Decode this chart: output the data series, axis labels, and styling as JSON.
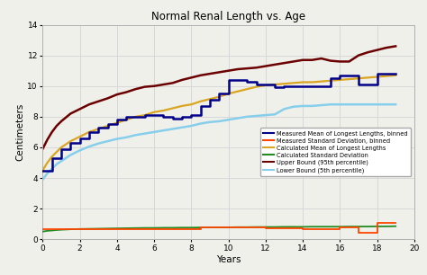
{
  "title": "Normal Renal Length vs. Age",
  "xlabel": "Years",
  "ylabel": "Centimeters",
  "xlim": [
    0,
    20
  ],
  "ylim": [
    0,
    14
  ],
  "xticks": [
    0,
    2,
    4,
    6,
    8,
    10,
    12,
    14,
    16,
    18,
    20
  ],
  "yticks": [
    0,
    2,
    4,
    6,
    8,
    10,
    12,
    14
  ],
  "measured_mean_x": [
    0,
    0.5,
    1,
    1.5,
    2,
    2.5,
    3,
    3.5,
    4,
    4.5,
    5,
    5.5,
    6,
    6.5,
    7,
    7.5,
    8,
    8.5,
    9,
    9.5,
    10,
    10.5,
    11,
    11.5,
    12,
    12.5,
    13,
    13.5,
    14,
    14.5,
    15,
    15.5,
    16,
    16.5,
    17,
    17.5,
    18,
    18.5,
    19
  ],
  "measured_mean_y": [
    4.5,
    5.3,
    5.9,
    6.3,
    6.6,
    7.0,
    7.3,
    7.5,
    7.8,
    8.0,
    8.0,
    8.1,
    8.1,
    8.0,
    7.9,
    8.0,
    8.1,
    8.7,
    9.1,
    9.5,
    10.4,
    10.4,
    10.3,
    10.1,
    10.1,
    9.9,
    10.0,
    10.0,
    10.0,
    10.0,
    10.0,
    10.5,
    10.7,
    10.7,
    10.1,
    10.1,
    10.8,
    10.8,
    10.8
  ],
  "meas_std_x": [
    0,
    0.5,
    1,
    1.5,
    2,
    2.5,
    3,
    3.5,
    4,
    4.5,
    5,
    5.5,
    6,
    6.5,
    7,
    7.5,
    8,
    8.5,
    9,
    9.5,
    10,
    10.5,
    11,
    11.5,
    12,
    12.5,
    13,
    13.5,
    14,
    14.5,
    15,
    15.5,
    16,
    16.5,
    17,
    17.5,
    18,
    18.5,
    19
  ],
  "meas_std_y": [
    0.65,
    0.65,
    0.65,
    0.65,
    0.65,
    0.65,
    0.65,
    0.65,
    0.65,
    0.65,
    0.65,
    0.65,
    0.65,
    0.65,
    0.65,
    0.65,
    0.65,
    0.75,
    0.8,
    0.8,
    0.75,
    0.75,
    0.75,
    0.75,
    0.7,
    0.7,
    0.7,
    0.7,
    0.65,
    0.65,
    0.65,
    0.65,
    0.75,
    0.75,
    0.4,
    0.4,
    1.05,
    1.05,
    1.05
  ],
  "calc_mean_x": [
    0,
    0.25,
    0.5,
    0.75,
    1,
    1.5,
    2,
    2.5,
    3,
    3.5,
    4,
    4.5,
    5,
    5.5,
    6,
    6.5,
    7,
    7.5,
    8,
    8.5,
    9,
    9.5,
    10,
    10.5,
    11,
    11.5,
    12,
    12.5,
    13,
    13.5,
    14,
    14.5,
    15,
    15.5,
    16,
    16.5,
    17,
    17.5,
    18,
    18.5,
    19
  ],
  "calc_mean_y": [
    4.5,
    5.0,
    5.4,
    5.7,
    6.0,
    6.4,
    6.7,
    7.0,
    7.2,
    7.4,
    7.6,
    7.8,
    8.0,
    8.1,
    8.3,
    8.4,
    8.55,
    8.7,
    8.8,
    9.0,
    9.15,
    9.3,
    9.5,
    9.65,
    9.8,
    9.95,
    10.05,
    10.1,
    10.15,
    10.2,
    10.25,
    10.25,
    10.3,
    10.35,
    10.4,
    10.45,
    10.5,
    10.55,
    10.6,
    10.65,
    10.7
  ],
  "calc_std_x": [
    0,
    0.25,
    0.5,
    0.75,
    1,
    1.5,
    2,
    2.5,
    3,
    3.5,
    4,
    4.5,
    5,
    5.5,
    6,
    6.5,
    7,
    7.5,
    8,
    8.5,
    9,
    9.5,
    10,
    10.5,
    11,
    11.5,
    12,
    12.5,
    13,
    13.5,
    14,
    14.5,
    15,
    15.5,
    16,
    16.5,
    17,
    17.5,
    18,
    18.5,
    19
  ],
  "calc_std_y": [
    0.5,
    0.55,
    0.57,
    0.6,
    0.62,
    0.65,
    0.67,
    0.68,
    0.69,
    0.7,
    0.71,
    0.72,
    0.73,
    0.74,
    0.74,
    0.75,
    0.75,
    0.76,
    0.76,
    0.77,
    0.77,
    0.78,
    0.78,
    0.79,
    0.79,
    0.8,
    0.8,
    0.8,
    0.81,
    0.81,
    0.81,
    0.82,
    0.82,
    0.82,
    0.82,
    0.83,
    0.83,
    0.83,
    0.84,
    0.84,
    0.85
  ],
  "upper_x": [
    0,
    0.25,
    0.5,
    0.75,
    1,
    1.5,
    2,
    2.5,
    3,
    3.5,
    4,
    4.5,
    5,
    5.5,
    6,
    6.5,
    7,
    7.5,
    8,
    8.5,
    9,
    9.5,
    10,
    10.5,
    11,
    11.5,
    12,
    12.5,
    13,
    13.5,
    14,
    14.5,
    15,
    15.5,
    16,
    16.5,
    17,
    17.5,
    18,
    18.5,
    19
  ],
  "upper_y": [
    5.9,
    6.5,
    7.0,
    7.4,
    7.7,
    8.2,
    8.5,
    8.8,
    9.0,
    9.2,
    9.45,
    9.6,
    9.8,
    9.95,
    10.0,
    10.1,
    10.2,
    10.4,
    10.55,
    10.7,
    10.8,
    10.9,
    11.0,
    11.1,
    11.15,
    11.2,
    11.3,
    11.4,
    11.5,
    11.6,
    11.7,
    11.7,
    11.8,
    11.65,
    11.6,
    11.6,
    12.0,
    12.2,
    12.35,
    12.5,
    12.6
  ],
  "lower_x": [
    0,
    0.25,
    0.5,
    0.75,
    1,
    1.5,
    2,
    2.5,
    3,
    3.5,
    4,
    4.5,
    5,
    5.5,
    6,
    6.5,
    7,
    7.5,
    8,
    8.5,
    9,
    9.5,
    10,
    10.5,
    11,
    11.5,
    12,
    12.5,
    13,
    13.5,
    14,
    14.5,
    15,
    15.5,
    16,
    16.5,
    17,
    17.5,
    18,
    18.5,
    19
  ],
  "lower_y": [
    3.9,
    4.3,
    4.6,
    4.9,
    5.1,
    5.5,
    5.8,
    6.05,
    6.25,
    6.4,
    6.55,
    6.65,
    6.8,
    6.9,
    7.0,
    7.1,
    7.2,
    7.3,
    7.4,
    7.55,
    7.65,
    7.7,
    7.8,
    7.9,
    8.0,
    8.05,
    8.1,
    8.15,
    8.5,
    8.65,
    8.7,
    8.7,
    8.75,
    8.8,
    8.8,
    8.8,
    8.8,
    8.8,
    8.8,
    8.8,
    8.8
  ],
  "color_measured_mean": "#00008B",
  "color_meas_std": "#FF4500",
  "color_calc_mean": "#DAA520",
  "color_calc_std": "#228B22",
  "color_upper": "#6B0000",
  "color_lower": "#87CEEB",
  "legend_labels": [
    "Measured Mean of Longest Lengths, binned",
    "Measured Standard Deviation, binned",
    "Calculated Mean of Longest Lengths",
    "Calculated Standard Deviation",
    "Upper Bound (95th percentile)",
    "Lower Bound (5th percentile)"
  ],
  "background_color": "#f0f0eb",
  "grid_color": "#d8d8d8",
  "spine_color": "#b0b0b0"
}
